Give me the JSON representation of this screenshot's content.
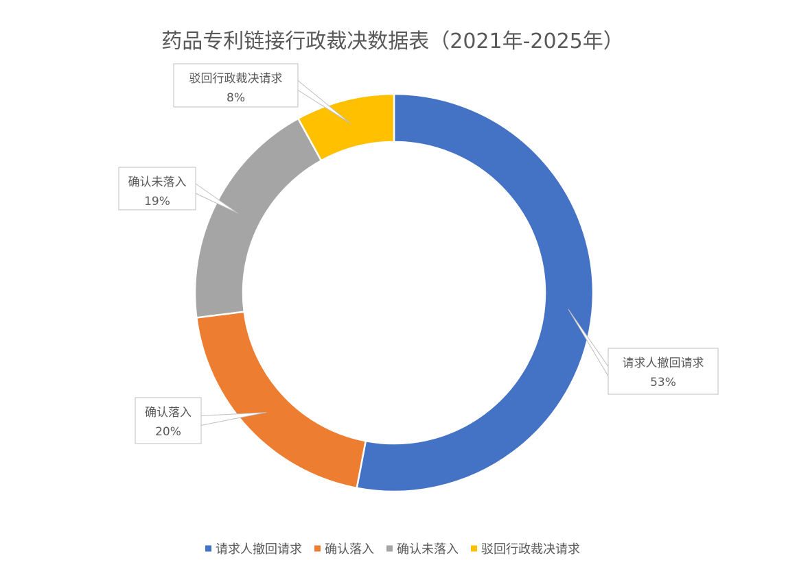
{
  "chart_data": {
    "type": "pie",
    "style": "doughnut",
    "title": "药品专利链接行政裁决数据表（2021年-2025年）",
    "categories": [
      "请求人撤回请求",
      "确认落入",
      "确认未落入",
      "驳回行政裁决请求"
    ],
    "values": [
      53,
      20,
      19,
      8
    ],
    "labels": [
      "53%",
      "20%",
      "19%",
      "8%"
    ],
    "colors": [
      "#4472C4",
      "#ED7D31",
      "#A5A5A5",
      "#FFC000"
    ],
    "legend": "bottom"
  }
}
